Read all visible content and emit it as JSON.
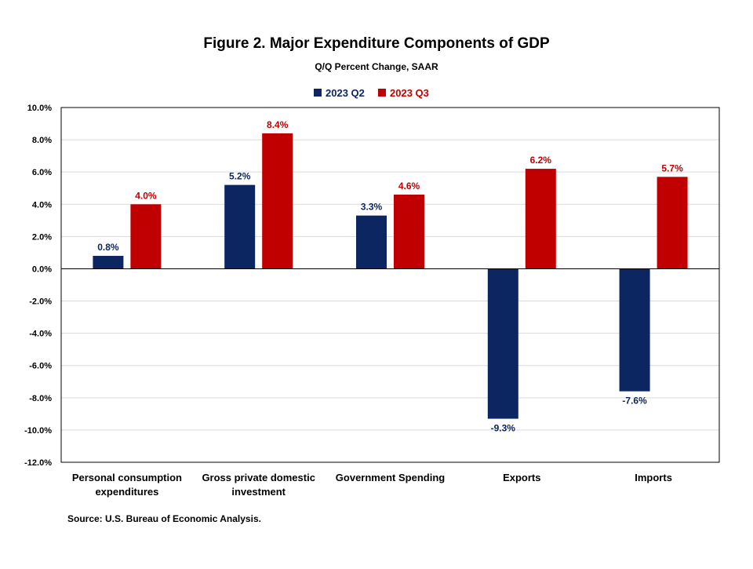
{
  "chart_data": {
    "type": "bar",
    "title": "Figure 2. Major Expenditure Components of GDP",
    "subtitle": "Q/Q Percent Change, SAAR",
    "categories": [
      [
        "Personal consumption",
        "expenditures"
      ],
      [
        "Gross private domestic",
        "investment"
      ],
      [
        "Government Spending"
      ],
      [
        "Exports"
      ],
      [
        "Imports"
      ]
    ],
    "series": [
      {
        "name": "2023 Q2",
        "color": "#0c2661",
        "values": [
          0.8,
          5.2,
          3.3,
          -9.3,
          -7.6
        ],
        "labels": [
          "0.8%",
          "5.2%",
          "3.3%",
          "-9.3%",
          "-7.6%"
        ]
      },
      {
        "name": "2023 Q3",
        "color": "#c00000",
        "values": [
          4.0,
          8.4,
          4.6,
          6.2,
          5.7
        ],
        "labels": [
          "4.0%",
          "8.4%",
          "4.6%",
          "6.2%",
          "5.7%"
        ]
      }
    ],
    "ylim": [
      -12,
      10
    ],
    "yticks": [
      10,
      8,
      6,
      4,
      2,
      0,
      -2,
      -4,
      -6,
      -8,
      -10,
      -12
    ],
    "ytick_labels": [
      "10.0%",
      "8.0%",
      "6.0%",
      "4.0%",
      "2.0%",
      "0.0%",
      "-2.0%",
      "-4.0%",
      "-6.0%",
      "-8.0%",
      "-10.0%",
      "-12.0%"
    ],
    "grid": true,
    "legend_position": "top-center",
    "source": "Source: U.S. Bureau of Economic Analysis."
  }
}
